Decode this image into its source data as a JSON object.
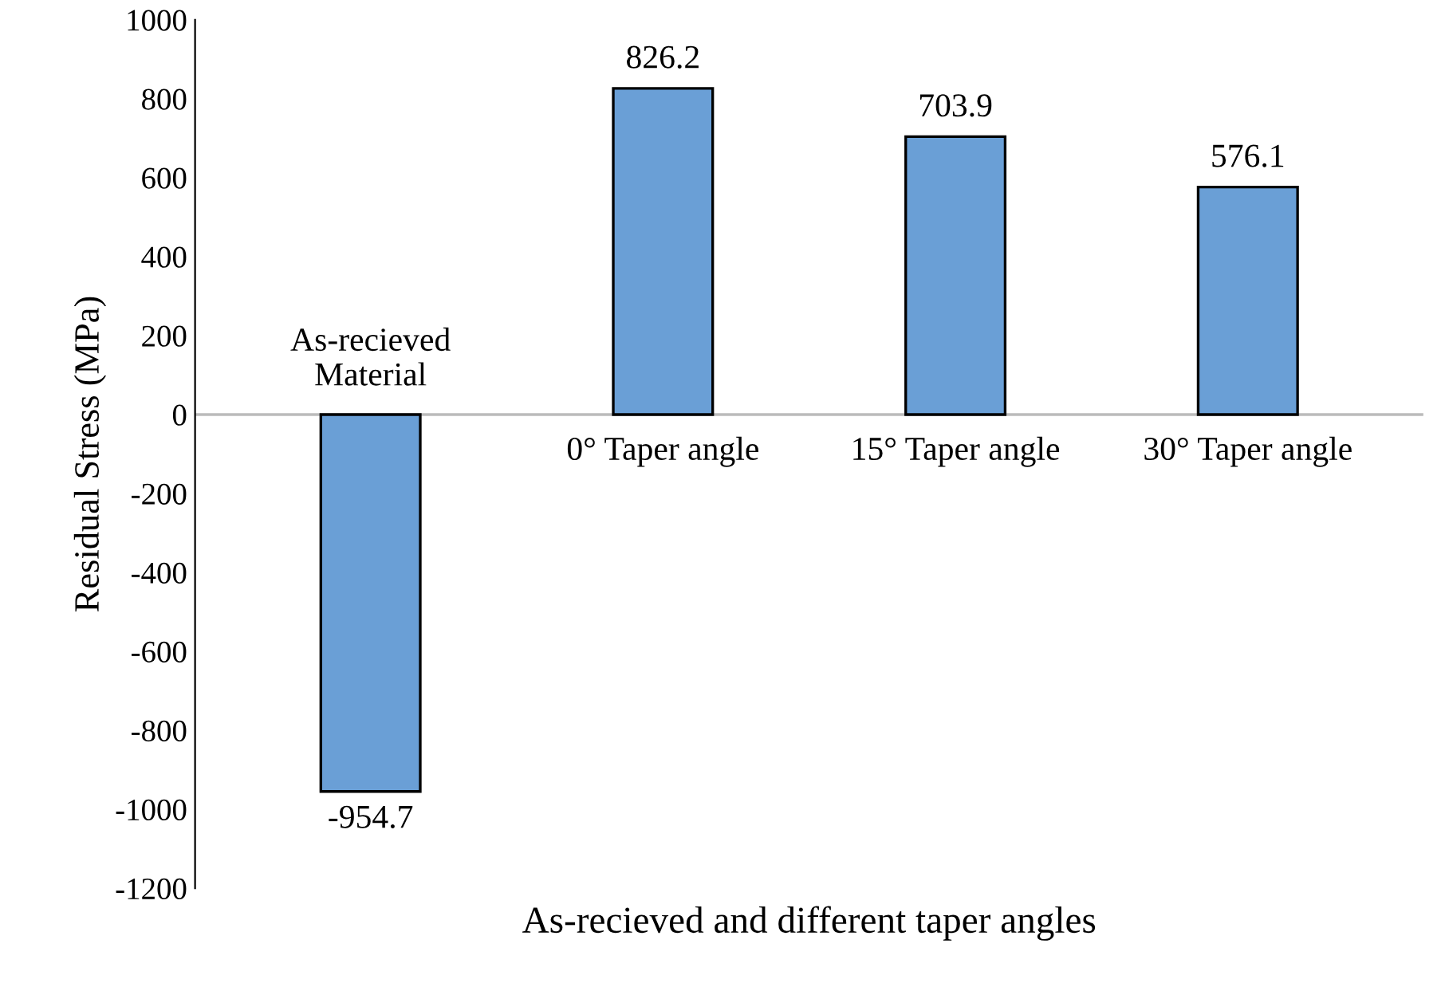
{
  "chart_data": {
    "type": "bar",
    "xlabel": "As-recieved and different taper angles",
    "ylabel": "Residual Stress (MPa)",
    "categories": [
      "As-recieved\nMaterial",
      "0° Taper angle",
      "15° Taper angle",
      "30° Taper angle"
    ],
    "values": [
      -954.7,
      826.2,
      703.9,
      576.1
    ],
    "color": "#6a9fd6",
    "ylim": [
      -1200,
      1000
    ],
    "yticks": [
      -1200,
      -1000,
      -800,
      -600,
      -400,
      -200,
      0,
      200,
      400,
      600,
      800,
      1000
    ],
    "data_labels": true,
    "grid": false,
    "legend": false
  }
}
